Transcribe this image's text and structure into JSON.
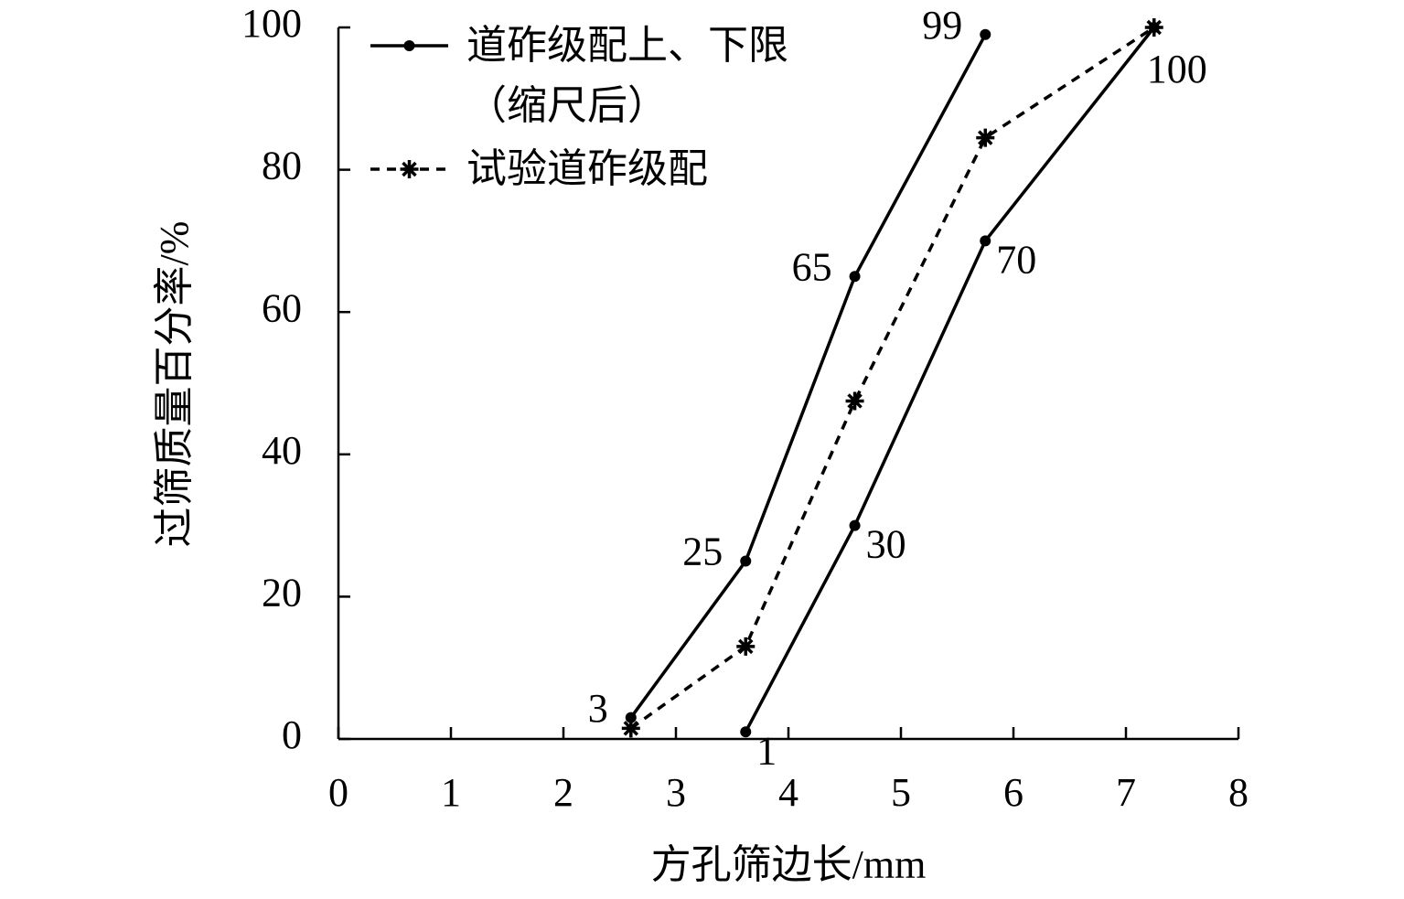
{
  "chart_data": {
    "type": "line",
    "xlabel": "方孔筛边长/mm",
    "ylabel": "过筛质量百分率/%",
    "x": [
      2.6,
      3.62,
      4.59,
      5.75,
      7.25
    ],
    "xlim": [
      0,
      8
    ],
    "xticks": [
      0,
      1,
      2,
      3,
      4,
      5,
      6,
      7,
      8
    ],
    "ylim": [
      0,
      100
    ],
    "yticks": [
      0,
      20,
      40,
      60,
      80,
      100
    ],
    "legend": "upper left",
    "series": [
      {
        "name": "道砟级配上、下限\n（缩尺后）",
        "color": "#000000",
        "marker": "circle",
        "dashed": false,
        "labels": "left",
        "values": [
          3,
          25,
          65,
          99,
          null
        ]
      },
      {
        "color": "#000000",
        "marker": "circle",
        "dashed": false,
        "labels": "right",
        "values": [
          null,
          1,
          30,
          70,
          100
        ]
      },
      {
        "name": "试验道砟级配",
        "color": "#000000",
        "marker": "star",
        "dashed": true,
        "values": [
          1.5,
          13,
          47.5,
          84.5,
          100
        ]
      }
    ]
  }
}
